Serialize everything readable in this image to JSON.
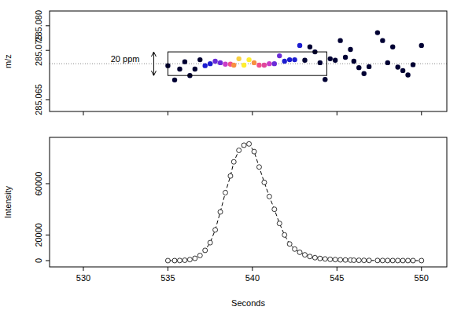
{
  "chart_data": [
    {
      "type": "scatter",
      "y_label": "m/z",
      "xlim": [
        528,
        551.5
      ],
      "xticks": [
        530,
        535,
        540,
        545,
        550
      ],
      "ylim": [
        285.0626,
        285.083
      ],
      "yticks": [
        285.065,
        285.075,
        {
          "value": 285.08,
          "label": "285.080"
        }
      ],
      "tick_labels": "y",
      "marker": "circle",
      "x": [
        535.0,
        535.4,
        535.7,
        536.0,
        536.3,
        536.6,
        536.9,
        537.2,
        537.5,
        537.8,
        538.1,
        538.4,
        538.7,
        538.9,
        539.2,
        539.5,
        539.8,
        540.1,
        540.4,
        540.7,
        541.0,
        541.3,
        541.6,
        541.9,
        542.2,
        542.5,
        542.8,
        543.1,
        543.4,
        543.7,
        544.0,
        544.3,
        544.6,
        544.9,
        545.2,
        545.5,
        545.8,
        546.0,
        546.3,
        546.6,
        546.9,
        547.4,
        547.7,
        548.0,
        548.3,
        548.6,
        548.9,
        549.2,
        549.5,
        550.0
      ],
      "series": [
        {
          "values": [
            285.0719,
            285.069,
            285.0712,
            285.0727,
            285.0699,
            285.0712,
            285.0731,
            285.0719,
            285.0723,
            285.0728,
            285.0725,
            285.0722,
            285.0722,
            285.072,
            285.0733,
            285.072,
            285.0731,
            285.0725,
            285.072,
            285.072,
            285.0723,
            285.0723,
            285.0739,
            285.0728,
            285.0731,
            285.0731,
            285.076,
            285.073,
            285.0757,
            285.0747,
            285.0725,
            285.0691,
            285.0733,
            285.073,
            285.077,
            285.0736,
            285.0752,
            285.0728,
            285.0715,
            285.0703,
            285.0717,
            285.0786,
            285.077,
            285.0725,
            285.0757,
            285.0716,
            285.0709,
            285.07,
            285.0721,
            285.076
          ],
          "colors": [
            "#000033",
            "#000033",
            "#000033",
            "#000033",
            "#000033",
            "#000033",
            "#000033",
            "#1c1cd0",
            "#1c1cd0",
            "#6a2bd8",
            "#6a2bd8",
            "#c83cc8",
            "#f0508c",
            "#f89040",
            "#f8d040",
            "#ffee30",
            "#ffee30",
            "#f89040",
            "#f0508c",
            "#e0489c",
            "#c83cc8",
            "#6a2bd8",
            "#6a2bd8",
            "#1c1cd0",
            "#1c1cd0",
            "#1c1cd0",
            "#1c1cd0",
            "#000033",
            "#000033",
            "#000033",
            "#000033",
            "#000033",
            "#000033",
            "#000033",
            "#000033",
            "#000033",
            "#000033",
            "#000033",
            "#000033",
            "#000033",
            "#000033",
            "#000033",
            "#000033",
            "#000033",
            "#000033",
            "#000033",
            "#000033",
            "#000033",
            "#000033",
            "#000033"
          ]
        }
      ],
      "reference_line": 285.0723,
      "box": {
        "x": [
          535.0,
          544.4
        ],
        "y": [
          285.0699,
          285.0747
        ]
      },
      "annotation": "20 ppm"
    },
    {
      "type": "line",
      "x_label": "Seconds",
      "y_label": "Intensity",
      "xlim": [
        528,
        551.5
      ],
      "xticks": [
        530,
        535,
        540,
        545,
        550
      ],
      "ylim": [
        -4900,
        96100
      ],
      "yticks": [
        0,
        20000,
        60000
      ],
      "marker": "circle",
      "line_style": "dashed",
      "x": [
        535.0,
        535.4,
        535.7,
        536.0,
        536.3,
        536.6,
        536.9,
        537.2,
        537.5,
        537.8,
        538.1,
        538.4,
        538.7,
        538.9,
        539.2,
        539.5,
        539.8,
        540.1,
        540.4,
        540.7,
        541.0,
        541.3,
        541.6,
        541.9,
        542.2,
        542.5,
        542.8,
        543.1,
        543.4,
        543.7,
        544.0,
        544.3,
        544.6,
        544.9,
        545.2,
        545.5,
        545.8,
        546.0,
        546.3,
        546.6,
        546.9,
        547.4,
        547.7,
        548.0,
        548.3,
        548.6,
        548.9,
        549.2,
        549.5,
        550.0
      ],
      "series": [
        {
          "values": [
            0,
            0,
            100,
            300,
            800,
            1800,
            4000,
            8000,
            14000,
            24000,
            38000,
            53000,
            66000,
            77000,
            86000,
            90000,
            91000,
            85000,
            73000,
            61000,
            50000,
            40000,
            29000,
            20000,
            13000,
            9000,
            6500,
            4500,
            3200,
            2300,
            1700,
            1300,
            1000,
            800,
            600,
            500,
            400,
            300,
            250,
            200,
            150,
            120,
            100,
            80,
            60,
            50,
            40,
            30,
            20,
            20
          ]
        }
      ]
    }
  ]
}
